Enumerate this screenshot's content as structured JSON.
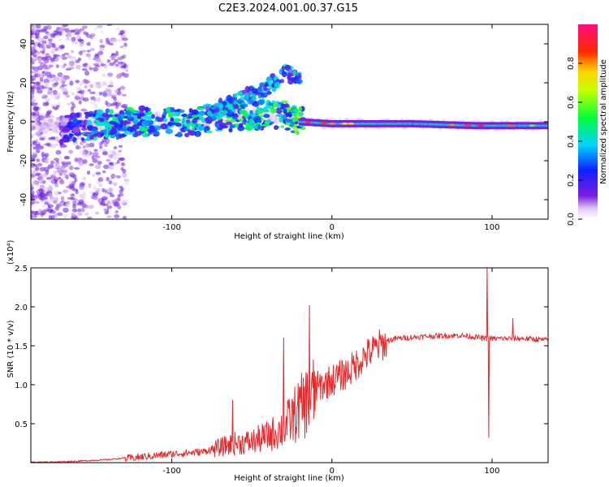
{
  "figure": {
    "title": "C2E3.2024.001.00.37.G15"
  },
  "colors": {
    "axis": "#000000",
    "snr_line": "#e8292c",
    "background": "#ffffff"
  },
  "chart_data": [
    {
      "type": "heatmap",
      "title": "",
      "xlabel": "Height of straight line (km)",
      "ylabel": "Frequency (Hz)",
      "xlim": [
        -188,
        135
      ],
      "ylim": [
        -50,
        50
      ],
      "xticks": [
        -100,
        0,
        100
      ],
      "yticks": [
        -40,
        -20,
        0,
        20,
        40
      ],
      "grid": false,
      "colorbar": {
        "label": "Normalized spectral amplitude",
        "range": [
          0,
          1
        ],
        "ticks": [
          0.0,
          0.2,
          0.4,
          0.6,
          0.8
        ],
        "colormap": "rainbow (white-violet-blue-cyan-green-yellow-red-magenta)"
      },
      "ridge": [
        {
          "x": -188,
          "center_hz": -2,
          "peak_amp": 0.05
        },
        {
          "x": -165,
          "center_hz": -4,
          "peak_amp": 0.25
        },
        {
          "x": -150,
          "center_hz": -2,
          "peak_amp": 0.45
        },
        {
          "x": -120,
          "center_hz": 0,
          "peak_amp": 0.5
        },
        {
          "x": -90,
          "center_hz": 0,
          "peak_amp": 0.5
        },
        {
          "x": -60,
          "center_hz": 3,
          "peak_amp": 0.55
        },
        {
          "x": -30,
          "center_hz": 4,
          "peak_amp": 0.55
        },
        {
          "x": -20,
          "center_hz": 0,
          "peak_amp": 0.7
        },
        {
          "x": 0,
          "center_hz": -1,
          "peak_amp": 0.8
        },
        {
          "x": 50,
          "center_hz": -1,
          "peak_amp": 0.7
        },
        {
          "x": 90,
          "center_hz": -2,
          "peak_amp": 0.85
        },
        {
          "x": 135,
          "center_hz": -2,
          "peak_amp": 0.7
        }
      ],
      "upper_branch": [
        {
          "x": -80,
          "hz": 4
        },
        {
          "x": -60,
          "hz": 10
        },
        {
          "x": -40,
          "hz": 18
        },
        {
          "x": -28,
          "hz": 25
        },
        {
          "x": -20,
          "hz": 22
        }
      ]
    },
    {
      "type": "line",
      "title": "",
      "xlabel": "Height of straight line (km)",
      "ylabel": "SNR (10 * v/v)",
      "y_multiplier": "(x10⁴)",
      "xlim": [
        -188,
        135
      ],
      "ylim": [
        0,
        2.5
      ],
      "xticks": [
        -100,
        0,
        100
      ],
      "yticks": [
        0.5,
        1.0,
        1.5,
        2.0,
        2.5
      ],
      "grid": false,
      "series": [
        {
          "x": [
            -188,
            -160,
            -140,
            -120,
            -100,
            -80,
            -70,
            -60,
            -50,
            -40,
            -30,
            -20,
            -10,
            0,
            10,
            20,
            30,
            40,
            60,
            80,
            90,
            95,
            100,
            110,
            120,
            135
          ],
          "y": [
            0.0,
            0.02,
            0.04,
            0.08,
            0.12,
            0.15,
            0.22,
            0.28,
            0.3,
            0.38,
            0.5,
            0.78,
            1.0,
            1.1,
            1.2,
            1.4,
            1.55,
            1.6,
            1.63,
            1.64,
            1.62,
            1.6,
            1.6,
            1.6,
            1.6,
            1.58
          ],
          "spikes": [
            {
              "x": -62,
              "y": 0.8
            },
            {
              "x": -30,
              "y": 1.6
            },
            {
              "x": -14,
              "y": 2.02
            },
            {
              "x": 97,
              "y": 2.5
            },
            {
              "x": 98,
              "y": 0.32
            },
            {
              "x": 113,
              "y": 1.85
            }
          ]
        }
      ]
    }
  ]
}
